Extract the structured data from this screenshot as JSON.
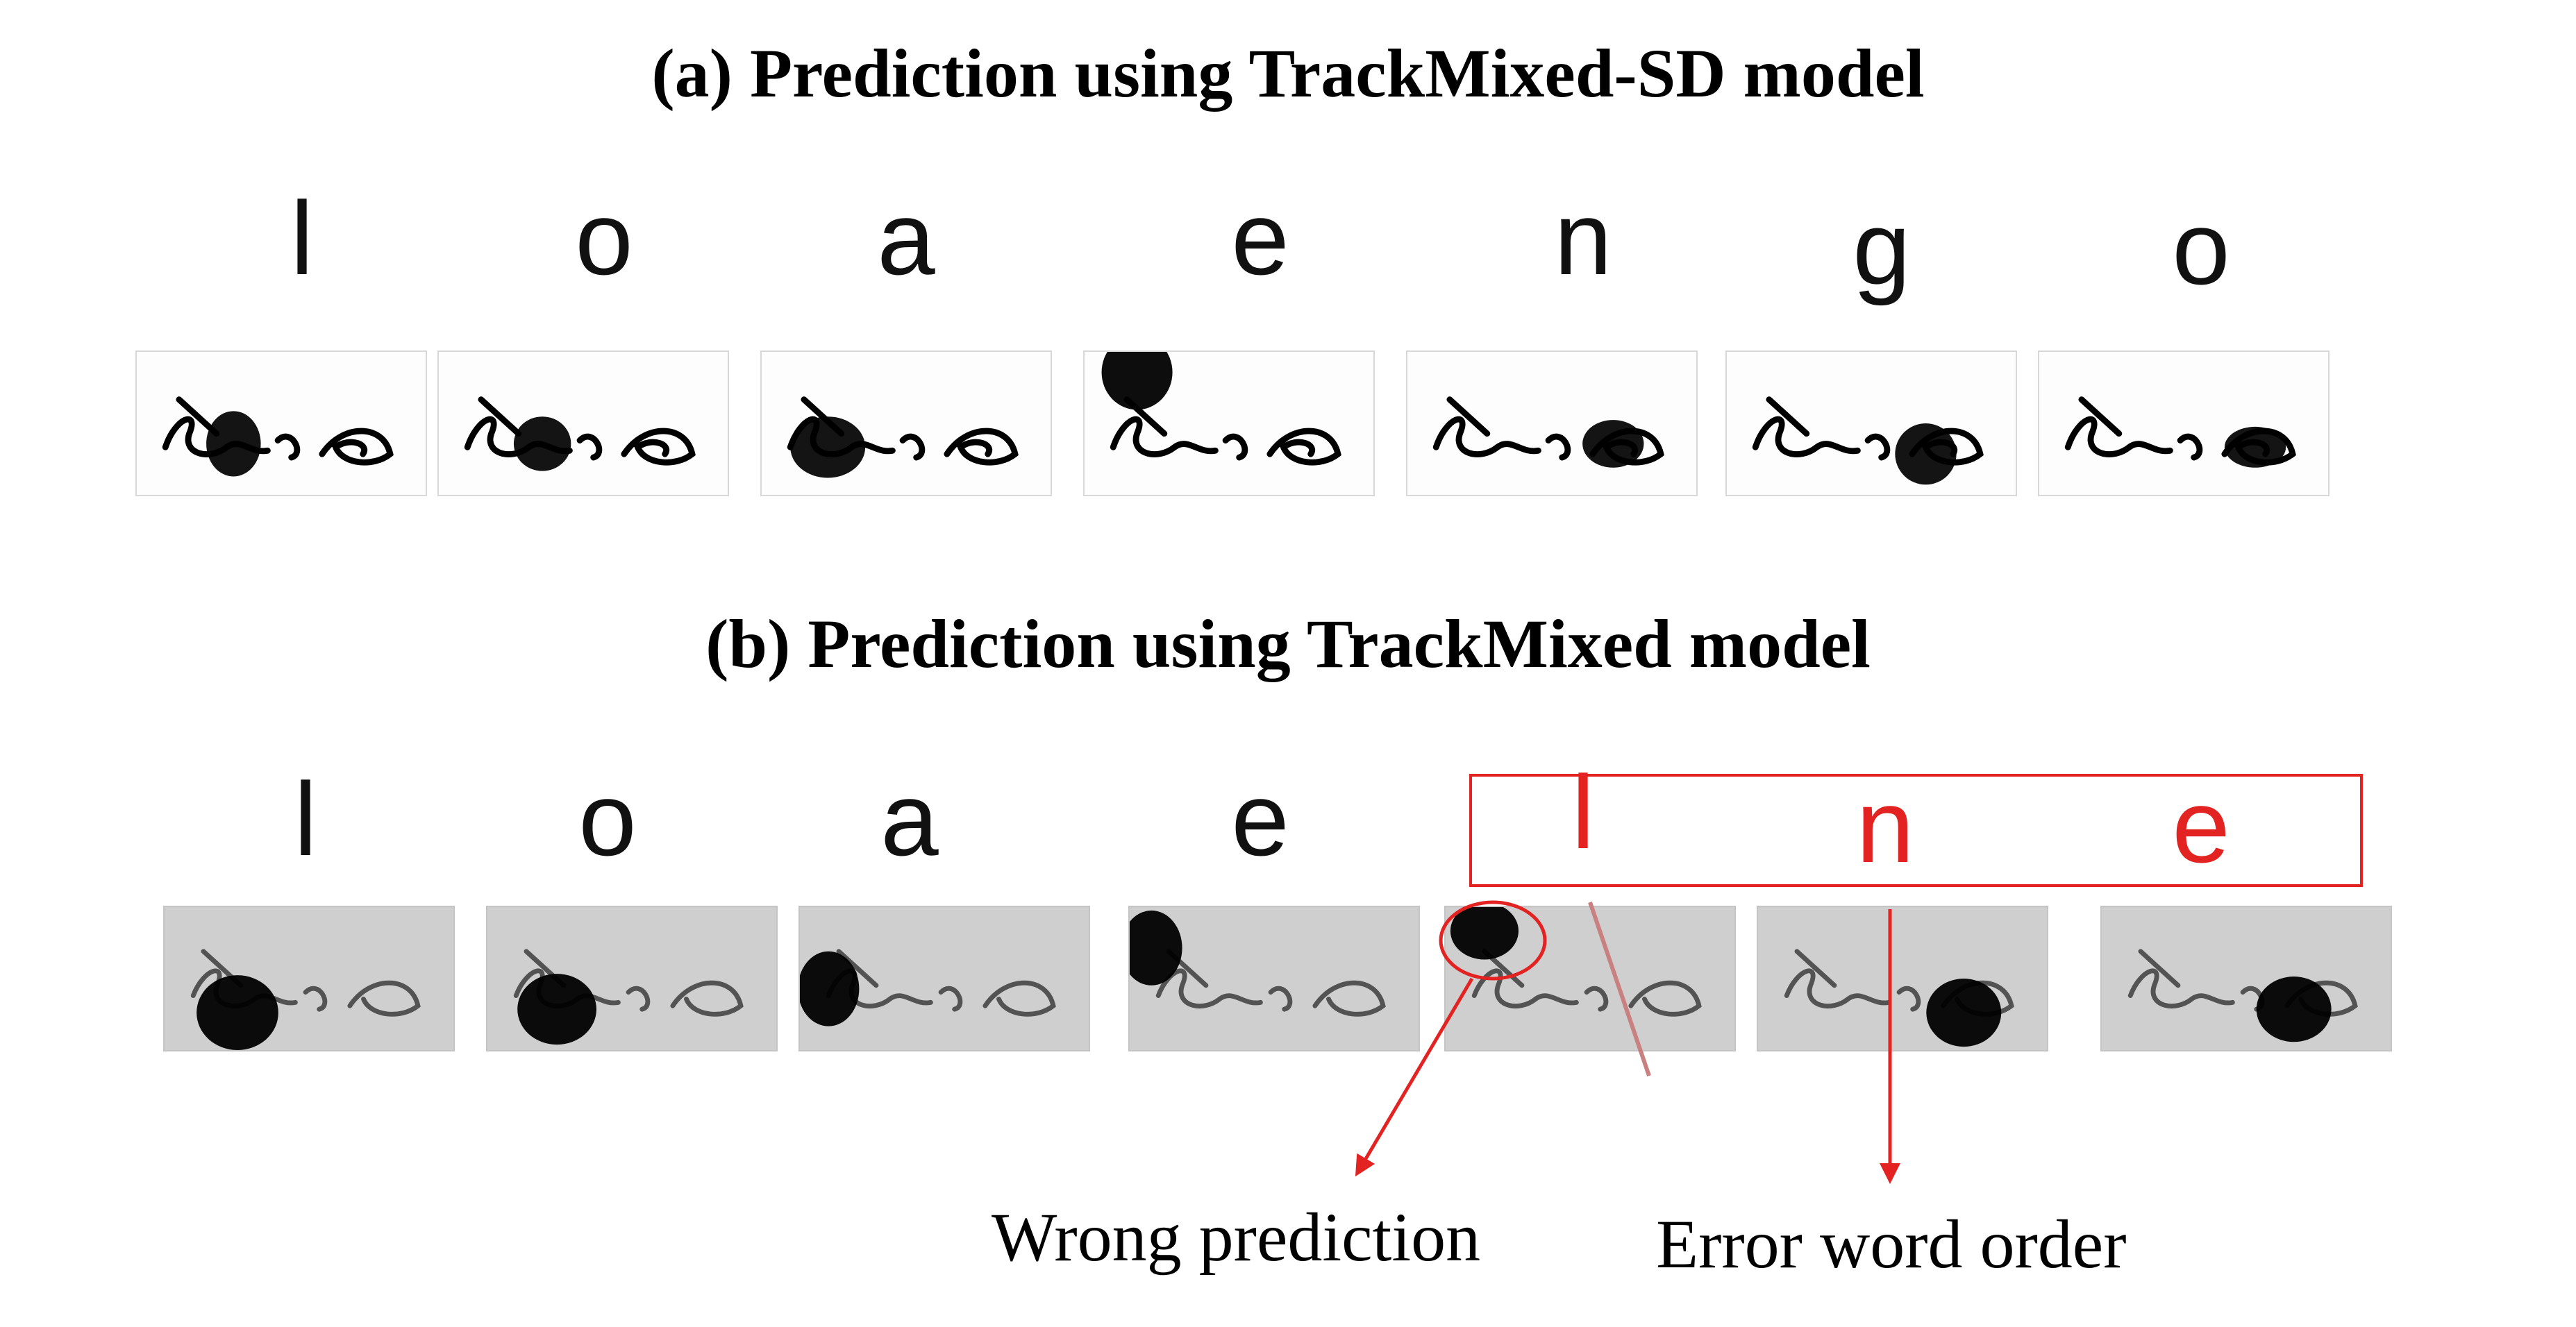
{
  "title_a": "(a) Prediction using TrackMixed-SD model",
  "title_b": "(b) Prediction using TrackMixed model",
  "row_a_letters": [
    "l",
    "o",
    "a",
    "e",
    "n",
    "g",
    "o"
  ],
  "row_b_letters": [
    "l",
    "o",
    "a",
    "e",
    "l",
    "n",
    "e"
  ],
  "annotation_wrong": "Wrong prediction",
  "annotation_order": "Error word order",
  "highlight_color": "#e32222"
}
